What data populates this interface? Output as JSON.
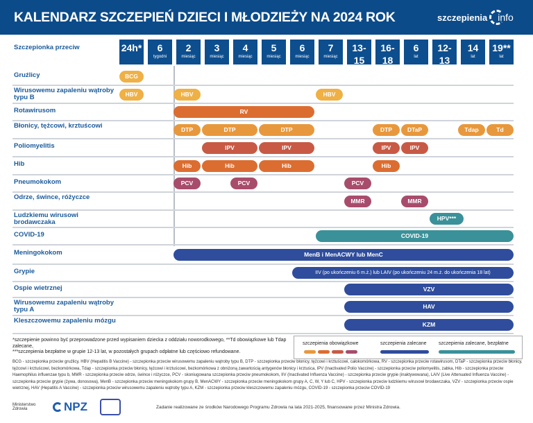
{
  "header": {
    "title": "KALENDARZ SZCZEPIEŃ DZIECI I MŁODZIEŻY NA 2024 ROK",
    "logo_left": "szczepienia",
    "logo_right": "info"
  },
  "corner_label": "Szczepionka przeciw",
  "columns": [
    {
      "n": "24h*",
      "u": ""
    },
    {
      "n": "6",
      "u": "tygodni"
    },
    {
      "n": "2",
      "u": "miesiąc"
    },
    {
      "n": "3",
      "u": "miesiąc"
    },
    {
      "n": "4",
      "u": "miesiąc"
    },
    {
      "n": "5",
      "u": "miesiąc"
    },
    {
      "n": "6",
      "u": "miesiąc"
    },
    {
      "n": "7",
      "u": "miesiąc"
    },
    {
      "n": "13-15",
      "u": "miesięcy"
    },
    {
      "n": "16-18",
      "u": "miesięcy"
    },
    {
      "n": "6",
      "u": "lat"
    },
    {
      "n": "12-13",
      "u": "lat"
    },
    {
      "n": "14",
      "u": "lat"
    },
    {
      "n": "19**",
      "u": "lat"
    }
  ],
  "colors": {
    "yellow": "#efb045",
    "orange": "#e8983c",
    "deep_orange": "#dc6d31",
    "red": "#c85a45",
    "plum": "#a84c6c",
    "teal": "#3a9199",
    "navy": "#2f4d9c"
  },
  "rows": [
    {
      "label": "Gruźlicy",
      "pills": [
        {
          "t": "BCG",
          "c": "yellow",
          "s": 0,
          "e": 0
        }
      ]
    },
    {
      "label": "Wirusowemu zapaleniu wątroby typu B",
      "pills": [
        {
          "t": "HBV",
          "c": "yellow",
          "s": 0,
          "e": 0
        },
        {
          "t": "HBV",
          "c": "yellow",
          "s": 2,
          "e": 2
        },
        {
          "t": "HBV",
          "c": "yellow",
          "s": 7,
          "e": 7
        }
      ]
    },
    {
      "label": "Rotawirusom",
      "pills": [
        {
          "t": "RV",
          "c": "deep_orange",
          "s": 2,
          "e": 6
        }
      ]
    },
    {
      "label": "Błonicy, tężcowi, krztuścowi",
      "pills": [
        {
          "t": "DTP",
          "c": "orange",
          "s": 2,
          "e": 2
        },
        {
          "t": "DTP",
          "c": "orange",
          "s": 3,
          "e": 4
        },
        {
          "t": "DTP",
          "c": "orange",
          "s": 5,
          "e": 6
        },
        {
          "t": "DTP",
          "c": "orange",
          "s": 9,
          "e": 9
        },
        {
          "t": "DTaP",
          "c": "orange",
          "s": 10,
          "e": 10
        },
        {
          "t": "Tdap",
          "c": "orange",
          "s": 12,
          "e": 12
        },
        {
          "t": "Td",
          "c": "orange",
          "s": 13,
          "e": 13
        }
      ]
    },
    {
      "label": "Poliomyelitis",
      "pills": [
        {
          "t": "IPV",
          "c": "red",
          "s": 3,
          "e": 4
        },
        {
          "t": "IPV",
          "c": "red",
          "s": 5,
          "e": 6
        },
        {
          "t": "IPV",
          "c": "red",
          "s": 9,
          "e": 9
        },
        {
          "t": "IPV",
          "c": "red",
          "s": 10,
          "e": 10
        }
      ]
    },
    {
      "label": "Hib",
      "pills": [
        {
          "t": "Hib",
          "c": "deep_orange",
          "s": 2,
          "e": 2
        },
        {
          "t": "Hib",
          "c": "deep_orange",
          "s": 3,
          "e": 4
        },
        {
          "t": "Hib",
          "c": "deep_orange",
          "s": 5,
          "e": 6
        },
        {
          "t": "Hib",
          "c": "deep_orange",
          "s": 9,
          "e": 9
        }
      ]
    },
    {
      "label": "Pneumokokom",
      "pills": [
        {
          "t": "PCV",
          "c": "plum",
          "s": 2,
          "e": 2
        },
        {
          "t": "PCV",
          "c": "plum",
          "s": 4,
          "e": 4
        },
        {
          "t": "PCV",
          "c": "plum",
          "s": 8,
          "e": 8
        }
      ]
    },
    {
      "label": "Odrze, śwince, różyczce",
      "pills": [
        {
          "t": "MMR",
          "c": "plum",
          "s": 8,
          "e": 8
        },
        {
          "t": "MMR",
          "c": "plum",
          "s": 10,
          "e": 10
        }
      ]
    },
    {
      "label": "Ludzkiemu wirusowi brodawczaka",
      "pills": [
        {
          "t": "HPV***",
          "c": "teal",
          "s": 11,
          "e": 11
        }
      ]
    },
    {
      "label": "COVID-19",
      "pills": [
        {
          "t": "COVID-19",
          "c": "teal",
          "s": 7,
          "e": 13
        }
      ]
    },
    {
      "label": "Meningokokom",
      "pills": [
        {
          "t": "MenB i MenACWY lub MenC",
          "c": "navy",
          "s": 2,
          "e": 13
        }
      ]
    },
    {
      "label": "Grypie",
      "pills": [
        {
          "t": "IIV (po ukończeniu 6 m.ż.) lub LAIV (po ukończeniu 24 m.ż. do ukończenia 18 lat)",
          "c": "navy",
          "s": 6,
          "e": 13
        }
      ]
    },
    {
      "label": "Ospie wietrznej",
      "pills": [
        {
          "t": "VZV",
          "c": "navy",
          "s": 8,
          "e": 13
        }
      ]
    },
    {
      "label": "Wirusowemu zapaleniu wątroby typu A",
      "pills": [
        {
          "t": "HAV",
          "c": "navy",
          "s": 8,
          "e": 13
        }
      ]
    },
    {
      "label": "Kleszczowemu zapaleniu mózgu",
      "pills": [
        {
          "t": "KZM",
          "c": "navy",
          "s": 8,
          "e": 13
        }
      ]
    }
  ],
  "footnotes": [
    "*szczepienie powinno być przeprowadzone przed wypisaniem dziecka z oddziału noworodkowego, **Td obowiązkowe lub Tdap zalecane,",
    "***szczepienia bezpłatne w grupie 12-13 lat, w pozostałych grupach odpłatne lub częściowo refundowane."
  ],
  "legend": {
    "mandatory": "szczepienia obowiązkowe",
    "recommended": "szczepienia zalecane",
    "recommended_free": "szczepienia zalecane, bezpłatne"
  },
  "abbreviations": "BCG - szczepionka przeciw gruźlicy, HBV (Hepatitis B Vaccine) - szczepionka przeciw wirusowemu zapaleniu wątroby typu B, DTP - szczepionka przeciw błonicy, tężcowi i krztuścowi, całokomórkowa, RV - szczepionka przeciw rotawirusom, DTaP - szczepionka przeciw błonicy, tężcowi i krztuścowi, bezkomórkowa, Tdap - szczepionka przeciw błonicy, tężcowi i krztuścowi, bezkomórkowa z obniżoną zawartością antygenów błonicy i krztuśca, IPV (Inactivated Polio Vaccine) - szczepionka przeciw poliomyelitis, zabka, Hib - szczepionka przeciw Haemophilus influenzae typu b, MMR - szczepionka przeciw odrze, śwince i różyczce, PCV - skoniugowana szczepionka przeciw pneumokokom, IIV (Inactivated Influenza Vaccine) - szczepionka przeciw grypie (inaktywowana), LAIV (Live Attenuated Influenza Vaccine) - szczepionka przeciw grypie (żywa, donosowa), MenB - szczepionka przeciw meningokokom grupy B, MenACWY - szczepionka przeciw meningokokom grupy A, C, W, Y lub C, HPV - szczepionka przeciw ludzkiemu wirusowi brodawczaka, VZV - szczepionka przeciw ospie wietrznej, HAV (Hepatitis A Vaccine) - szczepionka przeciw wirusowemu zapaleniu wątroby typu A, KZM - szczepionka przeciw kleszczowemu zapaleniu mózgu, COVID-19 - szczepionka przeciw COVID-19",
  "logos": {
    "ministry": "Ministerstwo Zdrowia",
    "npz": "NPZ"
  },
  "credit": "Zadanie realizowane ze środków Narodowego Programu Zdrowia na lata 2021-2025, finansowane przez Ministra Zdrowia."
}
